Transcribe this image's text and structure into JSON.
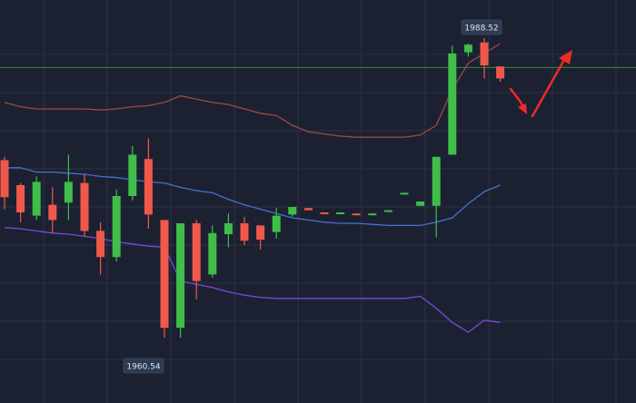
{
  "chart_data": {
    "type": "candlestick",
    "title": "",
    "xlabel": "",
    "ylabel": "",
    "ylim": [
      1955,
      1992
    ],
    "grid": true,
    "colors": {
      "background": "#1c2132",
      "grid": "#2a3247",
      "up": "#3fbe4a",
      "down": "#f0584a",
      "upper_band": "#9a4a40",
      "middle_band": "#4a6fd0",
      "lower_band": "#7a4ad8",
      "price_line": "#3a8a3a",
      "arrow": "#ee2a2a",
      "label_bg": "#2e3a52"
    },
    "price_line_value": 1985.8,
    "annotations": [
      {
        "text": "1988.52",
        "type": "high"
      },
      {
        "text": "1960.54",
        "type": "low"
      }
    ],
    "candles": [
      {
        "o": 1977.3,
        "c": 1973.9,
        "h": 1977.6,
        "l": 1972.8
      },
      {
        "o": 1975.0,
        "c": 1972.5,
        "h": 1975.2,
        "l": 1971.6
      },
      {
        "o": 1972.2,
        "c": 1975.3,
        "h": 1975.8,
        "l": 1971.8
      },
      {
        "o": 1973.2,
        "c": 1971.8,
        "h": 1974.8,
        "l": 1970.6
      },
      {
        "o": 1973.4,
        "c": 1975.3,
        "h": 1977.8,
        "l": 1971.8
      },
      {
        "o": 1975.2,
        "c": 1970.8,
        "h": 1976.0,
        "l": 1970.3
      },
      {
        "o": 1970.8,
        "c": 1968.4,
        "h": 1971.6,
        "l": 1966.8
      },
      {
        "o": 1968.4,
        "c": 1974.0,
        "h": 1974.6,
        "l": 1968.0
      },
      {
        "o": 1974.0,
        "c": 1977.8,
        "h": 1978.6,
        "l": 1973.6
      },
      {
        "o": 1977.4,
        "c": 1972.3,
        "h": 1979.3,
        "l": 1971.0
      },
      {
        "o": 1971.8,
        "c": 1961.9,
        "h": 1971.8,
        "l": 1961.0
      },
      {
        "o": 1961.9,
        "c": 1971.5,
        "h": 1971.5,
        "l": 1961.0
      },
      {
        "o": 1971.5,
        "c": 1966.2,
        "h": 1971.8,
        "l": 1964.5
      },
      {
        "o": 1966.8,
        "c": 1970.6,
        "h": 1971.3,
        "l": 1966.5
      },
      {
        "o": 1970.5,
        "c": 1971.5,
        "h": 1972.4,
        "l": 1969.3
      },
      {
        "o": 1971.5,
        "c": 1969.9,
        "h": 1972.1,
        "l": 1969.5
      },
      {
        "o": 1971.3,
        "c": 1970.0,
        "h": 1971.3,
        "l": 1969.1
      },
      {
        "o": 1970.7,
        "c": 1972.2,
        "h": 1972.9,
        "l": 1970.1
      },
      {
        "o": 1972.3,
        "c": 1973.0,
        "h": 1973.0,
        "l": 1972.1
      },
      {
        "o": 1972.9,
        "c": 1972.7,
        "h": 1972.9,
        "l": 1972.7
      },
      {
        "o": 1972.5,
        "c": 1972.4,
        "h": 1972.5,
        "l": 1972.4
      },
      {
        "o": 1972.4,
        "c": 1972.5,
        "h": 1972.5,
        "l": 1972.4
      },
      {
        "o": 1972.4,
        "c": 1972.3,
        "h": 1972.4,
        "l": 1972.3
      },
      {
        "o": 1972.3,
        "c": 1972.4,
        "h": 1972.4,
        "l": 1972.3
      },
      {
        "o": 1972.6,
        "c": 1972.7,
        "h": 1972.7,
        "l": 1972.6
      },
      {
        "o": 1974.2,
        "c": 1974.3,
        "h": 1974.3,
        "l": 1974.2
      },
      {
        "o": 1973.1,
        "c": 1973.5,
        "h": 1973.5,
        "l": 1973.1
      },
      {
        "o": 1973.1,
        "c": 1977.6,
        "h": 1977.6,
        "l": 1970.2
      },
      {
        "o": 1977.8,
        "c": 1987.1,
        "h": 1987.8,
        "l": 1977.8
      },
      {
        "o": 1987.2,
        "c": 1987.9,
        "h": 1988.0,
        "l": 1986.8
      },
      {
        "o": 1988.1,
        "c": 1986.0,
        "h": 1988.5,
        "l": 1984.8
      },
      {
        "o": 1985.9,
        "c": 1984.8,
        "h": 1985.9,
        "l": 1984.5
      }
    ],
    "bands": {
      "upper": [
        1982.6,
        1982.2,
        1982.0,
        1982.0,
        1982.0,
        1982.0,
        1981.9,
        1982.0,
        1982.2,
        1982.3,
        1982.6,
        1983.2,
        1982.9,
        1982.6,
        1982.4,
        1982.0,
        1981.6,
        1981.4,
        1980.5,
        1979.9,
        1979.7,
        1979.5,
        1979.4,
        1979.4,
        1979.4,
        1979.4,
        1979.6,
        1980.5,
        1983.8,
        1986.2,
        1987.1,
        1988.0
      ],
      "middle": [
        1976.6,
        1976.6,
        1976.2,
        1976.2,
        1976.1,
        1976.0,
        1975.8,
        1975.7,
        1975.5,
        1975.3,
        1975.2,
        1974.8,
        1974.5,
        1974.3,
        1973.7,
        1973.2,
        1972.8,
        1972.4,
        1972.0,
        1971.8,
        1971.6,
        1971.5,
        1971.5,
        1971.4,
        1971.3,
        1971.3,
        1971.3,
        1971.6,
        1972.0,
        1973.3,
        1974.4,
        1975.0
      ],
      "lower": [
        1971.1,
        1971.0,
        1970.8,
        1970.6,
        1970.5,
        1970.3,
        1970.1,
        1969.8,
        1969.6,
        1969.4,
        1969.3,
        1966.2,
        1965.9,
        1965.6,
        1965.2,
        1964.9,
        1964.7,
        1964.6,
        1964.6,
        1964.6,
        1964.6,
        1964.6,
        1964.6,
        1964.6,
        1964.6,
        1964.6,
        1964.8,
        1963.7,
        1962.4,
        1961.5,
        1962.6,
        1962.4
      ]
    }
  }
}
